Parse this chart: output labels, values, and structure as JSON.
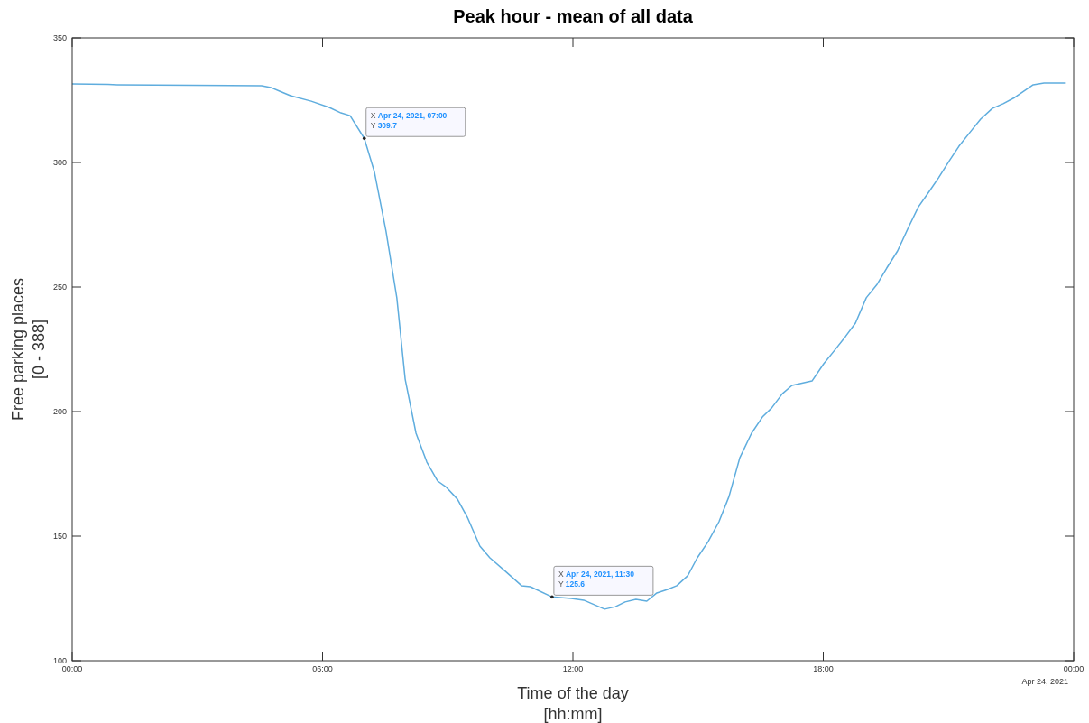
{
  "chart_data": {
    "type": "line",
    "title": "Peak hour - mean of all data",
    "xlabel": "Time of the day\n[hh:mm]",
    "ylabel": "Free parking places\n[0 - 388]",
    "x": [
      0,
      0.86,
      1.08,
      4.54,
      4.76,
      4.97,
      5.23,
      5.73,
      6.16,
      6.44,
      6.66,
      7,
      7.24,
      7.52,
      7.78,
      7.98,
      8.24,
      8.5,
      8.76,
      8.97,
      9.23,
      9.47,
      9.77,
      10.01,
      10.38,
      10.77,
      10.98,
      11.5,
      11.96,
      12.26,
      12.76,
      13.02,
      13.25,
      13.51,
      13.77,
      14.01,
      14.27,
      14.49,
      14.75,
      14.98,
      15.24,
      15.5,
      15.74,
      16,
      16.28,
      16.54,
      16.76,
      17.02,
      17.25,
      17.73,
      18.01,
      18.27,
      18.53,
      18.77,
      19.03,
      19.29,
      19.52,
      19.78,
      20.04,
      20.28,
      20.54,
      20.76,
      21.02,
      21.25,
      21.51,
      21.77,
      22.05,
      22.31,
      22.59,
      23.03,
      23.29,
      23.78
    ],
    "series": [
      {
        "color": "#5fadde",
        "values": [
          331.5,
          331.3,
          331.2,
          330.8,
          330.1,
          328.6,
          326.8,
          324.6,
          322.1,
          319.9,
          318.8,
          309.7,
          296.4,
          272.5,
          245.7,
          213,
          191.3,
          179.7,
          172.1,
          169.6,
          164.9,
          157.6,
          146,
          141.3,
          135.9,
          130.1,
          129.7,
          125.6,
          125,
          124.3,
          120.7,
          121.7,
          123.6,
          124.6,
          123.9,
          127.2,
          128.6,
          130.1,
          134.1,
          141.3,
          147.8,
          155.8,
          165.9,
          181.5,
          191.3,
          197.8,
          201.4,
          207.2,
          210.5,
          212.3,
          219.2,
          224.6,
          230.1,
          235.5,
          245.7,
          251.1,
          257.6,
          264.5,
          273.9,
          282.2,
          288.4,
          293.8,
          300.7,
          306.5,
          312,
          317.4,
          321.7,
          323.6,
          326.1,
          331.2,
          331.9,
          331.9
        ]
      }
    ],
    "xlim": [
      0,
      24
    ],
    "xticks": [
      {
        "value": 0,
        "label": "00:00"
      },
      {
        "value": 6,
        "label": "06:00"
      },
      {
        "value": 12,
        "label": "12:00"
      },
      {
        "value": 18,
        "label": "18:00"
      },
      {
        "value": 24,
        "label": "00:00"
      }
    ],
    "ylim": [
      100,
      350
    ],
    "yticks": [
      100,
      150,
      200,
      250,
      300,
      350
    ],
    "grid": false,
    "marker": "none",
    "line_style": "solid",
    "annotations": [
      {
        "text": "X Apr 24, 2021, 07:00\nY 309.7",
        "x": 7,
        "y": 309.7
      },
      {
        "text": "X Apr 24, 2021, 11:30\nY 125.6",
        "x": 11.5,
        "y": 125.6
      },
      "Apr 24, 2021"
    ]
  }
}
